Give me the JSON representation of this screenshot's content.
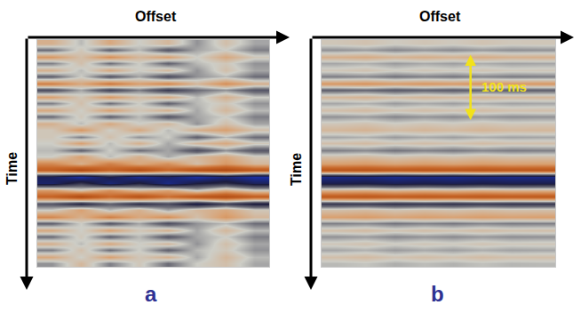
{
  "chart_data": [
    {
      "type": "heatmap",
      "panel_label": "a",
      "x_label": "Offset",
      "y_label": "Time",
      "tick_labels": false,
      "ylim": [
        0,
        340
      ],
      "zlim": [
        -1,
        1
      ],
      "time_ms": [
        5,
        15,
        25,
        35,
        45,
        55,
        65,
        75,
        85,
        95,
        105,
        115,
        125,
        135,
        145,
        155,
        165,
        175,
        185,
        195,
        205,
        215,
        225,
        235,
        245,
        255,
        265,
        275,
        285,
        295,
        305,
        315,
        325,
        335
      ],
      "cells": [
        [
          0.2,
          -0.05,
          0.25,
          0,
          0.15,
          -0.15,
          0.1,
          -0.1
        ],
        [
          -0.25,
          0.05,
          -0.3,
          -0.05,
          -0.35,
          -0.1,
          0,
          -0.2
        ],
        [
          0.35,
          0.1,
          0.4,
          0.15,
          0.3,
          0,
          0.25,
          0.05
        ],
        [
          -0.2,
          0.1,
          -0.25,
          0,
          -0.3,
          -0.05,
          0.05,
          -0.15
        ],
        [
          0.2,
          -0.05,
          0.25,
          0,
          0.15,
          -0.15,
          0.1,
          -0.1
        ],
        [
          -0.3,
          0,
          -0.35,
          -0.1,
          -0.4,
          -0.15,
          -0.05,
          -0.25
        ],
        [
          0.5,
          0.25,
          0.55,
          0.3,
          0.45,
          0.15,
          0.4,
          0.2
        ],
        [
          -0.4,
          -0.1,
          -0.45,
          -0.2,
          -0.5,
          -0.25,
          -0.15,
          -0.35
        ],
        [
          0.3,
          0.05,
          0.35,
          0.1,
          0.25,
          -0.05,
          0.2,
          0
        ],
        [
          -0.2,
          0.1,
          -0.25,
          0,
          -0.3,
          -0.05,
          0.05,
          -0.15
        ],
        [
          0.25,
          0,
          0.3,
          0.05,
          0.2,
          -0.1,
          0.15,
          -0.05
        ],
        [
          -0.25,
          0.05,
          -0.3,
          -0.05,
          -0.35,
          -0.1,
          0,
          -0.2
        ],
        [
          0.2,
          -0.05,
          0.25,
          0,
          0.15,
          -0.15,
          0.1,
          -0.1
        ],
        [
          0.05,
          0.35,
          0,
          0.25,
          -0.05,
          0.2,
          0.3,
          0.1
        ],
        [
          0.05,
          -0.2,
          0.1,
          -0.15,
          0,
          -0.3,
          -0.05,
          -0.25
        ],
        [
          0,
          0.3,
          -0.05,
          0.2,
          -0.1,
          0.15,
          0.25,
          0.05
        ],
        [
          -0.05,
          -0.3,
          0,
          -0.25,
          -0.1,
          -0.4,
          -0.15,
          -0.35
        ],
        [
          0,
          0.3,
          -0.05,
          0.2,
          -0.1,
          0.15,
          0.25,
          0.05
        ],
        [
          0.45,
          0.2,
          0.5,
          0.25,
          0.4,
          0.1,
          0.35,
          0.15
        ],
        [
          0.75,
          1,
          0.7,
          0.95,
          0.65,
          0.9,
          1,
          0.8
        ],
        [
          -0.75,
          -1,
          -0.7,
          -0.95,
          -0.8,
          -1,
          -0.85,
          -1
        ],
        [
          -0.8,
          -0.5,
          -0.85,
          -0.6,
          -0.9,
          -0.65,
          -0.55,
          -0.75
        ],
        [
          0.35,
          0.1,
          0.4,
          0.15,
          0.3,
          0,
          0.25,
          0.05
        ],
        [
          0.7,
          1,
          0.65,
          0.9,
          0.6,
          0.85,
          0.95,
          0.75
        ],
        [
          -0.35,
          -0.6,
          -0.3,
          -0.55,
          -0.4,
          -0.7,
          -0.45,
          -0.65
        ],
        [
          0,
          0.3,
          -0.05,
          0.2,
          -0.1,
          0.15,
          0.25,
          0.05
        ],
        [
          0.45,
          0.2,
          0.5,
          0.25,
          0.4,
          0.1,
          0.35,
          0.15
        ],
        [
          -0.3,
          0,
          -0.35,
          -0.1,
          -0.4,
          -0.15,
          -0.05,
          -0.25
        ],
        [
          0.25,
          0,
          0.3,
          0.05,
          0.2,
          -0.1,
          0.15,
          -0.05
        ],
        [
          -0.25,
          0.05,
          -0.3,
          -0.05,
          -0.35,
          -0.1,
          0,
          -0.2
        ],
        [
          0.2,
          -0.05,
          0.25,
          0,
          0.15,
          -0.15,
          0.1,
          -0.1
        ],
        [
          -0.2,
          0.1,
          -0.25,
          0,
          -0.3,
          -0.05,
          0.05,
          -0.15
        ],
        [
          0.25,
          0,
          0.3,
          0.05,
          0.2,
          -0.1,
          0.15,
          -0.05
        ],
        [
          -0.15,
          0.15,
          -0.2,
          0.05,
          -0.25,
          0,
          0.1,
          -0.1
        ]
      ]
    },
    {
      "type": "heatmap",
      "panel_label": "b",
      "x_label": "Offset",
      "y_label": "Time",
      "tick_labels": false,
      "ylim": [
        0,
        340
      ],
      "zlim": [
        -1,
        1
      ],
      "scale_bar": {
        "label": "100 ms",
        "length": 100
      },
      "time_ms": [
        5,
        15,
        25,
        35,
        45,
        55,
        65,
        75,
        85,
        95,
        105,
        115,
        125,
        135,
        145,
        155,
        165,
        175,
        185,
        195,
        205,
        215,
        225,
        235,
        245,
        255,
        265,
        275,
        285,
        295,
        305,
        315,
        325,
        335
      ],
      "cells": [
        [
          0.05,
          0.08,
          0.02,
          0.06,
          0.03,
          0.07,
          0.04,
          0.05
        ],
        [
          -0.15,
          -0.12,
          -0.18,
          -0.14,
          -0.17,
          -0.13,
          -0.16,
          -0.15
        ],
        [
          0.2,
          0.23,
          0.17,
          0.21,
          0.18,
          0.22,
          0.19,
          0.2
        ],
        [
          -0.1,
          -0.07,
          -0.13,
          -0.09,
          -0.12,
          -0.08,
          -0.11,
          -0.1
        ],
        [
          0.05,
          0.08,
          0.02,
          0.06,
          0.03,
          0.07,
          0.04,
          0.05
        ],
        [
          -0.2,
          -0.17,
          -0.23,
          -0.19,
          -0.22,
          -0.18,
          -0.21,
          -0.2
        ],
        [
          0.35,
          0.38,
          0.32,
          0.36,
          0.33,
          0.37,
          0.34,
          0.35
        ],
        [
          -0.3,
          -0.27,
          -0.33,
          -0.29,
          -0.32,
          -0.28,
          -0.31,
          -0.3
        ],
        [
          0.15,
          0.18,
          0.12,
          0.16,
          0.13,
          0.17,
          0.14,
          0.15
        ],
        [
          -0.1,
          -0.07,
          -0.13,
          -0.09,
          -0.12,
          -0.08,
          -0.11,
          -0.1
        ],
        [
          0.1,
          0.13,
          0.07,
          0.11,
          0.08,
          0.12,
          0.09,
          0.1
        ],
        [
          -0.15,
          -0.12,
          -0.18,
          -0.14,
          -0.17,
          -0.13,
          -0.16,
          -0.15
        ],
        [
          0.05,
          0.08,
          0.02,
          0.06,
          0.03,
          0.07,
          0.04,
          0.05
        ],
        [
          0.15,
          0.18,
          0.12,
          0.16,
          0.13,
          0.17,
          0.14,
          0.15
        ],
        [
          -0.1,
          -0.07,
          -0.13,
          -0.09,
          -0.12,
          -0.08,
          -0.11,
          -0.1
        ],
        [
          0.1,
          0.13,
          0.07,
          0.11,
          0.08,
          0.12,
          0.09,
          0.1
        ],
        [
          -0.2,
          -0.17,
          -0.23,
          -0.19,
          -0.22,
          -0.18,
          -0.21,
          -0.2
        ],
        [
          0.1,
          0.13,
          0.07,
          0.11,
          0.08,
          0.12,
          0.09,
          0.1
        ],
        [
          0.3,
          0.33,
          0.27,
          0.31,
          0.28,
          0.32,
          0.29,
          0.3
        ],
        [
          0.85,
          0.88,
          0.82,
          0.86,
          0.83,
          0.87,
          0.84,
          0.85
        ],
        [
          -0.9,
          -0.87,
          -0.93,
          -0.89,
          -0.92,
          -0.88,
          -0.91,
          -0.9
        ],
        [
          -0.7,
          -0.67,
          -0.73,
          -0.69,
          -0.72,
          -0.68,
          -0.71,
          -0.7
        ],
        [
          0.2,
          0.23,
          0.17,
          0.21,
          0.18,
          0.22,
          0.19,
          0.2
        ],
        [
          0.8,
          0.83,
          0.77,
          0.81,
          0.78,
          0.82,
          0.79,
          0.8
        ],
        [
          -0.5,
          -0.47,
          -0.53,
          -0.49,
          -0.52,
          -0.48,
          -0.51,
          -0.5
        ],
        [
          0.1,
          0.13,
          0.07,
          0.11,
          0.08,
          0.12,
          0.09,
          0.1
        ],
        [
          0.3,
          0.33,
          0.27,
          0.31,
          0.28,
          0.32,
          0.29,
          0.3
        ],
        [
          -0.2,
          -0.17,
          -0.23,
          -0.19,
          -0.22,
          -0.18,
          -0.21,
          -0.2
        ],
        [
          0.1,
          0.13,
          0.07,
          0.11,
          0.08,
          0.12,
          0.09,
          0.1
        ],
        [
          -0.15,
          -0.12,
          -0.18,
          -0.14,
          -0.17,
          -0.13,
          -0.16,
          -0.15
        ],
        [
          0.05,
          0.08,
          0.02,
          0.06,
          0.03,
          0.07,
          0.04,
          0.05
        ],
        [
          -0.1,
          -0.07,
          -0.13,
          -0.09,
          -0.12,
          -0.08,
          -0.11,
          -0.1
        ],
        [
          0.1,
          0.13,
          0.07,
          0.11,
          0.08,
          0.12,
          0.09,
          0.1
        ],
        [
          -0.05,
          -0.02,
          -0.08,
          -0.04,
          -0.07,
          -0.03,
          -0.06,
          -0.05
        ]
      ]
    }
  ]
}
